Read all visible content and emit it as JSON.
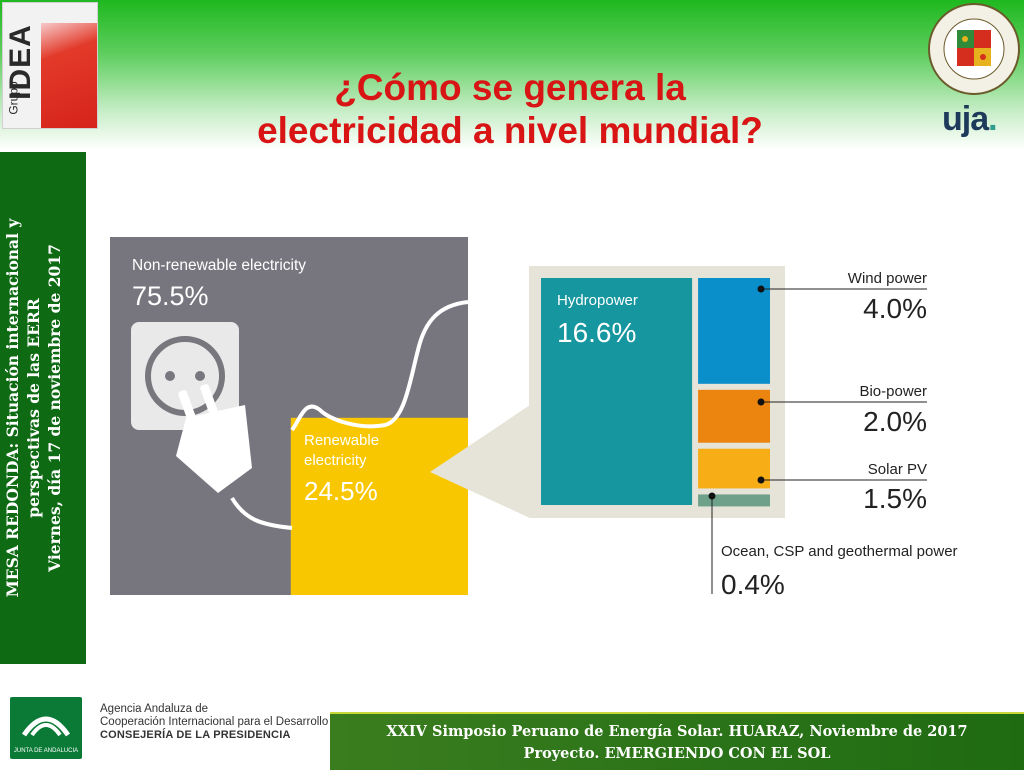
{
  "header": {
    "title_line1": "¿Cómo se genera la",
    "title_line2": "electricidad a nivel mundial?"
  },
  "logos": {
    "left_brand": "IDEA",
    "left_group": "Grupo",
    "right_text": "uja",
    "right_dot": "."
  },
  "sidebar": {
    "line1_bold": "MESA REDONDA",
    "line1_rest": ": Situación internacional y",
    "line2": "perspectivas de las EERR",
    "line3_bold": "Viernes",
    "line3_rest": ", día 17 de noviembre de 2017"
  },
  "chart_data": {
    "type": "treemap",
    "items": [
      {
        "label": "Non-renewable electricity",
        "value": 75.5,
        "display": "75.5%"
      },
      {
        "label": "Renewable electricity",
        "value": 24.5,
        "display": "24.5%"
      },
      {
        "label": "Hydropower",
        "value": 16.6,
        "display": "16.6%"
      },
      {
        "label": "Wind power",
        "value": 4.0,
        "display": "4.0%"
      },
      {
        "label": "Bio-power",
        "value": 2.0,
        "display": "2.0%"
      },
      {
        "label": "Solar PV",
        "value": 1.5,
        "display": "1.5%"
      },
      {
        "label": "Ocean, CSP and geothermal power",
        "value": 0.4,
        "display": "0.4%"
      }
    ],
    "colors": {
      "non_renewable": "#77767f",
      "renewable": "#f9c700",
      "hydropower": "#16969e",
      "wind": "#0b8fcb",
      "bio": "#ec8410",
      "solar": "#f7ad16",
      "ocean": "#6ea08a"
    }
  },
  "renewable_label_lines": [
    "Renewable",
    "electricity"
  ],
  "footer": {
    "agency_line1": "Agencia Andaluza de",
    "agency_line2": "Cooperación Internacional para el Desarrollo",
    "agency_line3": "CONSEJERÍA DE LA PRESIDENCIA",
    "ja_caption": "JUNTA DE ANDALUCIA",
    "banner_line1": "XXIV Simposio Peruano de Energía Solar. HUARAZ, Noviembre de 2017",
    "banner_line2": "Proyecto. EMERGIENDO CON EL SOL"
  }
}
